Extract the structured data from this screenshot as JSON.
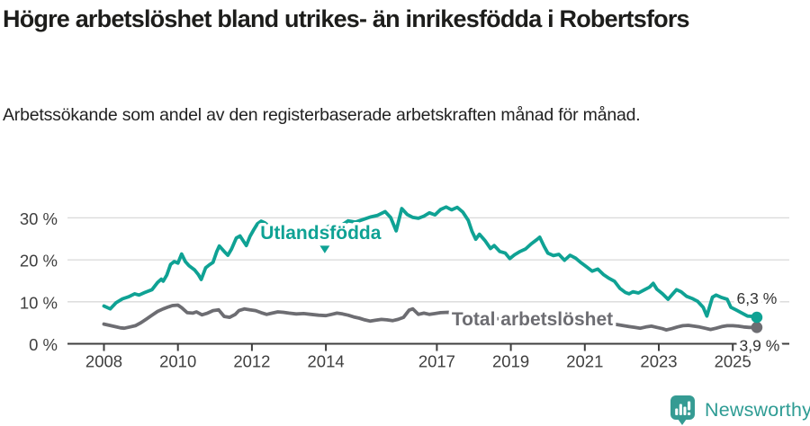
{
  "header": {
    "title": "Högre arbetslöshet bland utrikes- än inrikesfödda i Robertsfors",
    "subtitle": "Arbetssökande som andel av den registerbaserade arbetskraften månad för månad."
  },
  "footer": {
    "brand": "Newsworthy",
    "logo_icon": "speech-bubble-bar-chart-icon",
    "brand_color": "#2e9c94"
  },
  "chart_data": {
    "type": "line",
    "title": "Högre arbetslöshet bland utrikes- än inrikesfödda i Robertsfors",
    "subtitle": "Arbetssökande som andel av den registerbaserade arbetskraften månad för månad.",
    "unit": "%",
    "grid": true,
    "legend_position": "inline-labels-on-lines",
    "x_axis": {
      "tick_labels": [
        "2008",
        "2010",
        "2012",
        "2014",
        "2017",
        "2019",
        "2021",
        "2023",
        "2025"
      ],
      "tick_values": [
        2008,
        2010,
        2012,
        2014,
        2017,
        2019,
        2021,
        2023,
        2025
      ],
      "range": [
        2007.0,
        2026.5
      ]
    },
    "y_axis": {
      "tick_labels": [
        "0 %",
        "10 %",
        "20 %",
        "30 %"
      ],
      "tick_values": [
        0,
        10,
        20,
        30
      ],
      "range": [
        0,
        33.6
      ]
    },
    "series": [
      {
        "name": "Total arbetslöshet",
        "slug": "total-arbetsloshet",
        "color": "#6d6d72",
        "end_value": 3.9,
        "end_label": "3,9 %",
        "end_label_dx": 3,
        "end_label_dy": 20,
        "points": [
          [
            2008.0,
            4.7
          ],
          [
            2008.15,
            4.4
          ],
          [
            2008.3,
            4.1
          ],
          [
            2008.45,
            3.8
          ],
          [
            2008.55,
            3.7
          ],
          [
            2008.7,
            4.0
          ],
          [
            2008.85,
            4.3
          ],
          [
            2009.0,
            5.0
          ],
          [
            2009.15,
            5.9
          ],
          [
            2009.3,
            6.8
          ],
          [
            2009.45,
            7.7
          ],
          [
            2009.6,
            8.3
          ],
          [
            2009.75,
            8.8
          ],
          [
            2009.85,
            9.1
          ],
          [
            2010.0,
            9.2
          ],
          [
            2010.1,
            8.6
          ],
          [
            2010.25,
            7.4
          ],
          [
            2010.4,
            7.3
          ],
          [
            2010.5,
            7.6
          ],
          [
            2010.65,
            6.9
          ],
          [
            2010.8,
            7.3
          ],
          [
            2010.95,
            7.9
          ],
          [
            2011.1,
            8.1
          ],
          [
            2011.25,
            6.5
          ],
          [
            2011.4,
            6.3
          ],
          [
            2011.55,
            7.0
          ],
          [
            2011.65,
            7.9
          ],
          [
            2011.8,
            8.3
          ],
          [
            2011.95,
            8.1
          ],
          [
            2012.1,
            7.9
          ],
          [
            2012.25,
            7.4
          ],
          [
            2012.4,
            7.0
          ],
          [
            2012.55,
            7.3
          ],
          [
            2012.7,
            7.6
          ],
          [
            2012.85,
            7.5
          ],
          [
            2013.0,
            7.3
          ],
          [
            2013.2,
            7.1
          ],
          [
            2013.4,
            7.2
          ],
          [
            2013.6,
            7.0
          ],
          [
            2013.8,
            6.8
          ],
          [
            2014.0,
            6.7
          ],
          [
            2014.15,
            7.0
          ],
          [
            2014.3,
            7.3
          ],
          [
            2014.45,
            7.1
          ],
          [
            2014.6,
            6.8
          ],
          [
            2014.75,
            6.4
          ],
          [
            2014.9,
            6.1
          ],
          [
            2015.05,
            5.7
          ],
          [
            2015.2,
            5.4
          ],
          [
            2015.35,
            5.6
          ],
          [
            2015.5,
            5.8
          ],
          [
            2015.65,
            5.7
          ],
          [
            2015.8,
            5.5
          ],
          [
            2015.95,
            5.8
          ],
          [
            2016.1,
            6.3
          ],
          [
            2016.25,
            8.0
          ],
          [
            2016.35,
            8.3
          ],
          [
            2016.5,
            7.0
          ],
          [
            2016.65,
            7.3
          ],
          [
            2016.8,
            7.0
          ],
          [
            2016.95,
            7.2
          ],
          [
            2017.1,
            7.4
          ],
          [
            2017.3,
            7.5
          ],
          [
            2017.5,
            7.2
          ],
          [
            2017.7,
            6.9
          ],
          [
            2017.9,
            6.6
          ],
          [
            2018.1,
            6.4
          ],
          [
            2018.35,
            6.2
          ],
          [
            2018.6,
            6.0
          ],
          [
            2018.85,
            5.8
          ],
          [
            2019.1,
            5.7
          ],
          [
            2019.35,
            5.5
          ],
          [
            2019.6,
            5.6
          ],
          [
            2019.85,
            5.8
          ],
          [
            2020.1,
            6.0
          ],
          [
            2020.35,
            6.2
          ],
          [
            2020.6,
            6.1
          ],
          [
            2020.85,
            5.8
          ],
          [
            2021.1,
            5.5
          ],
          [
            2021.35,
            5.2
          ],
          [
            2021.6,
            4.9
          ],
          [
            2021.85,
            4.6
          ],
          [
            2022.05,
            4.3
          ],
          [
            2022.2,
            4.1
          ],
          [
            2022.35,
            3.9
          ],
          [
            2022.5,
            3.7
          ],
          [
            2022.65,
            4.0
          ],
          [
            2022.8,
            4.2
          ],
          [
            2022.95,
            3.9
          ],
          [
            2023.1,
            3.6
          ],
          [
            2023.2,
            3.3
          ],
          [
            2023.35,
            3.6
          ],
          [
            2023.5,
            4.0
          ],
          [
            2023.65,
            4.3
          ],
          [
            2023.8,
            4.4
          ],
          [
            2023.95,
            4.2
          ],
          [
            2024.1,
            4.0
          ],
          [
            2024.25,
            3.7
          ],
          [
            2024.4,
            3.4
          ],
          [
            2024.55,
            3.7
          ],
          [
            2024.7,
            4.1
          ],
          [
            2024.85,
            4.3
          ],
          [
            2025.0,
            4.3
          ],
          [
            2025.15,
            4.2
          ],
          [
            2025.3,
            4.0
          ],
          [
            2025.45,
            3.9
          ],
          [
            2025.65,
            3.9
          ]
        ]
      },
      {
        "name": "Utlandsfödda",
        "slug": "utlandsfodda",
        "color": "#0fa294",
        "end_value": 6.3,
        "end_label": "6,3 %",
        "end_label_dx": 0,
        "end_label_dy": -21,
        "points": [
          [
            2008.0,
            9.0
          ],
          [
            2008.17,
            8.3
          ],
          [
            2008.33,
            9.8
          ],
          [
            2008.5,
            10.7
          ],
          [
            2008.67,
            11.2
          ],
          [
            2008.83,
            11.9
          ],
          [
            2008.95,
            11.6
          ],
          [
            2009.1,
            12.2
          ],
          [
            2009.3,
            12.9
          ],
          [
            2009.45,
            14.6
          ],
          [
            2009.55,
            15.4
          ],
          [
            2009.6,
            14.9
          ],
          [
            2009.7,
            16.4
          ],
          [
            2009.8,
            18.9
          ],
          [
            2009.9,
            19.6
          ],
          [
            2010.0,
            19.2
          ],
          [
            2010.1,
            21.4
          ],
          [
            2010.2,
            19.6
          ],
          [
            2010.3,
            18.6
          ],
          [
            2010.45,
            17.6
          ],
          [
            2010.55,
            16.5
          ],
          [
            2010.63,
            15.3
          ],
          [
            2010.75,
            18.1
          ],
          [
            2010.85,
            18.8
          ],
          [
            2010.95,
            19.4
          ],
          [
            2011.05,
            22.0
          ],
          [
            2011.12,
            23.3
          ],
          [
            2011.25,
            22.0
          ],
          [
            2011.35,
            21.1
          ],
          [
            2011.45,
            22.6
          ],
          [
            2011.58,
            25.2
          ],
          [
            2011.68,
            25.7
          ],
          [
            2011.78,
            24.3
          ],
          [
            2011.85,
            23.4
          ],
          [
            2011.95,
            25.6
          ],
          [
            2012.05,
            27.2
          ],
          [
            2012.15,
            28.6
          ],
          [
            2012.25,
            29.2
          ],
          [
            2012.35,
            28.8
          ],
          [
            2012.45,
            28.1
          ],
          [
            2012.55,
            26.9
          ],
          [
            2012.65,
            26.3
          ],
          [
            2012.8,
            26.8
          ],
          [
            2012.95,
            27.1
          ],
          [
            2013.1,
            26.0
          ],
          [
            2013.25,
            25.3
          ],
          [
            2013.4,
            26.2
          ],
          [
            2013.55,
            27.0
          ],
          [
            2013.7,
            26.6
          ],
          [
            2013.85,
            27.2
          ],
          [
            2014.0,
            27.7
          ],
          [
            2014.2,
            28.4
          ],
          [
            2014.4,
            28.1
          ],
          [
            2014.6,
            29.3
          ],
          [
            2014.8,
            29.0
          ],
          [
            2015.0,
            29.6
          ],
          [
            2015.2,
            30.2
          ],
          [
            2015.4,
            30.6
          ],
          [
            2015.6,
            31.5
          ],
          [
            2015.75,
            30.1
          ],
          [
            2015.9,
            26.9
          ],
          [
            2016.05,
            32.2
          ],
          [
            2016.2,
            30.8
          ],
          [
            2016.35,
            30.1
          ],
          [
            2016.5,
            29.9
          ],
          [
            2016.65,
            30.4
          ],
          [
            2016.8,
            31.2
          ],
          [
            2016.95,
            30.7
          ],
          [
            2017.1,
            32.0
          ],
          [
            2017.25,
            32.6
          ],
          [
            2017.4,
            31.9
          ],
          [
            2017.55,
            32.5
          ],
          [
            2017.7,
            31.4
          ],
          [
            2017.85,
            29.4
          ],
          [
            2017.95,
            26.8
          ],
          [
            2018.05,
            24.9
          ],
          [
            2018.15,
            26.1
          ],
          [
            2018.3,
            24.6
          ],
          [
            2018.45,
            22.7
          ],
          [
            2018.55,
            23.4
          ],
          [
            2018.7,
            22.0
          ],
          [
            2018.85,
            21.6
          ],
          [
            2018.97,
            20.3
          ],
          [
            2019.1,
            21.2
          ],
          [
            2019.25,
            22.0
          ],
          [
            2019.4,
            22.6
          ],
          [
            2019.55,
            23.8
          ],
          [
            2019.7,
            24.8
          ],
          [
            2019.78,
            25.4
          ],
          [
            2019.9,
            23.2
          ],
          [
            2020.0,
            21.6
          ],
          [
            2020.15,
            21.0
          ],
          [
            2020.3,
            21.3
          ],
          [
            2020.45,
            19.9
          ],
          [
            2020.6,
            21.1
          ],
          [
            2020.75,
            20.4
          ],
          [
            2020.9,
            19.3
          ],
          [
            2021.05,
            18.3
          ],
          [
            2021.2,
            17.3
          ],
          [
            2021.35,
            17.8
          ],
          [
            2021.5,
            16.5
          ],
          [
            2021.65,
            15.6
          ],
          [
            2021.8,
            14.9
          ],
          [
            2021.95,
            13.2
          ],
          [
            2022.1,
            12.2
          ],
          [
            2022.2,
            11.9
          ],
          [
            2022.3,
            12.4
          ],
          [
            2022.45,
            12.1
          ],
          [
            2022.6,
            12.8
          ],
          [
            2022.75,
            13.5
          ],
          [
            2022.85,
            14.4
          ],
          [
            2022.95,
            13.0
          ],
          [
            2023.1,
            11.9
          ],
          [
            2023.25,
            10.6
          ],
          [
            2023.35,
            11.6
          ],
          [
            2023.48,
            12.9
          ],
          [
            2023.6,
            12.4
          ],
          [
            2023.75,
            11.3
          ],
          [
            2023.9,
            10.8
          ],
          [
            2024.05,
            10.1
          ],
          [
            2024.2,
            8.7
          ],
          [
            2024.3,
            6.6
          ],
          [
            2024.45,
            11.1
          ],
          [
            2024.55,
            11.6
          ],
          [
            2024.7,
            11.0
          ],
          [
            2024.85,
            10.6
          ],
          [
            2024.95,
            8.7
          ],
          [
            2025.1,
            8.0
          ],
          [
            2025.25,
            7.3
          ],
          [
            2025.4,
            6.6
          ],
          [
            2025.55,
            6.5
          ],
          [
            2025.65,
            6.3
          ]
        ]
      }
    ],
    "annotations": [
      {
        "text": "Utlandsfödda",
        "slug": "utlandsfodda",
        "x": 2013.86,
        "y": 26.3,
        "anchor": "middle",
        "color": "#0fa294",
        "bold": true,
        "marker": {
          "shape": "triangle-down",
          "x": 2013.97,
          "y": 22.5
        }
      },
      {
        "text": "Total arbetslöshet",
        "slug": "total-arbetsloshet",
        "x": 2017.4,
        "y": 5.8,
        "anchor": "start",
        "color": "#6d6d72",
        "bold": true
      }
    ],
    "colors": {
      "grid": "#d9d9d9",
      "axis": "#3f3f3f",
      "end_label_text": "#333333"
    }
  }
}
